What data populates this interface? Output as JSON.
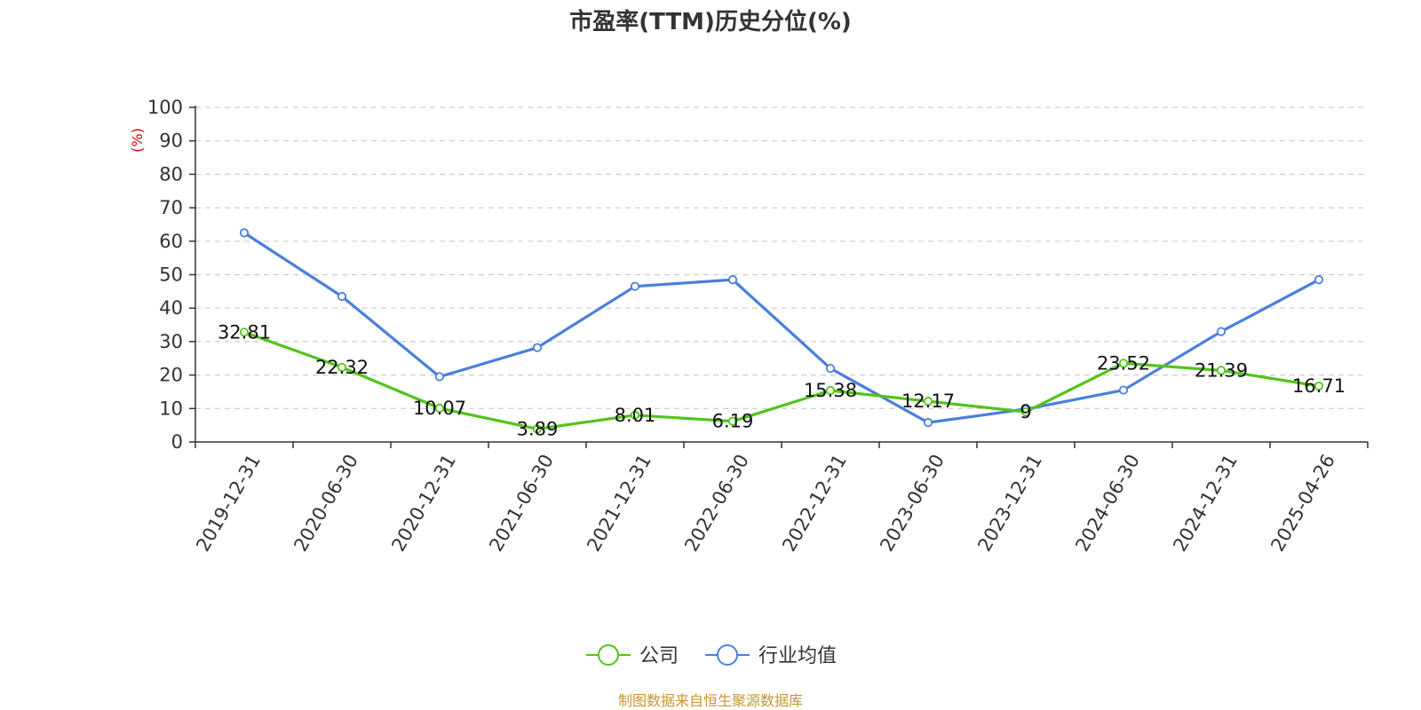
{
  "chart_data": {
    "type": "line",
    "title": "市盈率(TTM)历史分位(%)",
    "ylabel": "(%)",
    "ylim": [
      0,
      100
    ],
    "yticks": [
      0,
      10,
      20,
      30,
      40,
      50,
      60,
      70,
      80,
      90,
      100
    ],
    "categories": [
      "2019-12-31",
      "2020-06-30",
      "2020-12-31",
      "2021-06-30",
      "2021-12-31",
      "2022-06-30",
      "2022-12-31",
      "2023-06-30",
      "2023-12-31",
      "2024-06-30",
      "2024-12-31",
      "2025-04-26"
    ],
    "grid": true,
    "legend_position": "bottom-center",
    "series": [
      {
        "name": "公司",
        "color": "#52c41a",
        "values": [
          32.81,
          22.32,
          10.07,
          3.89,
          8.01,
          6.19,
          15.38,
          12.17,
          9,
          23.52,
          21.39,
          16.71
        ],
        "labels": [
          "32.81",
          "22.32",
          "10.07",
          "3.89",
          "8.01",
          "6.19",
          "15.38",
          "12.17",
          "9",
          "23.52",
          "21.39",
          "16.71"
        ]
      },
      {
        "name": "行业均值",
        "color": "#4a7fdc",
        "values": [
          62.5,
          43.5,
          19.5,
          28.2,
          46.5,
          48.5,
          22.0,
          5.8,
          9.8,
          15.5,
          33.0,
          48.5
        ]
      }
    ]
  },
  "source_note": "制图数据来自恒生聚源数据库"
}
